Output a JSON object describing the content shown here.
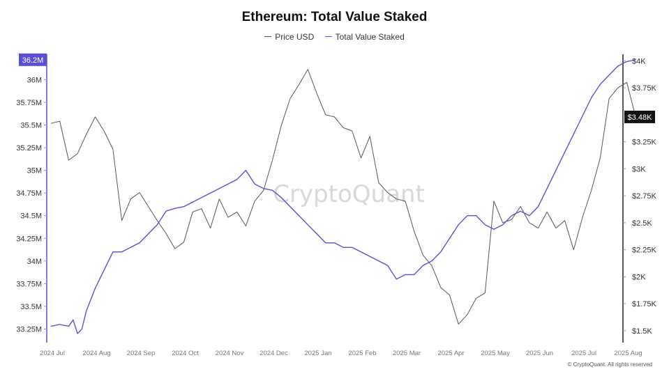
{
  "footer": {
    "copyright": "© CryptoQuant. All rights reserved"
  },
  "chart_data": {
    "type": "line",
    "title": "Ethereum: Total Value Staked",
    "watermark": "CryptoQuant",
    "legend_position": "top-center",
    "grid": false,
    "x_tick_labels": [
      "2024 Jul",
      "2024 Aug",
      "2024 Sep",
      "2024 Oct",
      "2024 Nov",
      "2024 Dec",
      "2025 Jan",
      "2025 Feb",
      "2025 Mar",
      "2025 Apr",
      "2025 May",
      "2025 Jun",
      "2025 Jul",
      "2025 Aug"
    ],
    "y_left": {
      "ticks": [
        33.25,
        33.5,
        33.75,
        34,
        34.25,
        34.5,
        34.75,
        35,
        35.25,
        35.5,
        35.75,
        36
      ],
      "tick_labels": [
        "33.25M",
        "33.5M",
        "33.75M",
        "34M",
        "34.25M",
        "34.5M",
        "34.75M",
        "35M",
        "35.25M",
        "35.5M",
        "35.75M",
        "36M"
      ],
      "range": [
        33.1,
        36.28
      ],
      "current_label": "36.2M",
      "color": "#5b4fd6"
    },
    "y_right": {
      "ticks": [
        1500,
        1750,
        2000,
        2250,
        2500,
        2750,
        3000,
        3250,
        3500,
        3750,
        4000
      ],
      "tick_labels": [
        "$1.5K",
        "$1.75K",
        "$2K",
        "$2.25K",
        "$2.5K",
        "$2.75K",
        "$3K",
        "$3.25K",
        "$3.5K",
        "$3.75K",
        "$4K"
      ],
      "range": [
        1390,
        4060
      ],
      "current_label": "$3.48K",
      "color": "#111111"
    },
    "series": [
      {
        "name": "Price USD",
        "axis": "right",
        "color": "#555555",
        "x": [
          0,
          0.2,
          0.4,
          0.6,
          0.8,
          1.0,
          1.2,
          1.4,
          1.6,
          1.8,
          2.0,
          2.2,
          2.4,
          2.6,
          2.8,
          3.0,
          3.2,
          3.4,
          3.6,
          3.8,
          4.0,
          4.2,
          4.4,
          4.6,
          4.8,
          5.0,
          5.2,
          5.4,
          5.6,
          5.8,
          6.0,
          6.2,
          6.4,
          6.6,
          6.8,
          7.0,
          7.2,
          7.4,
          7.6,
          7.8,
          8.0,
          8.2,
          8.4,
          8.6,
          8.8,
          9.0,
          9.2,
          9.4,
          9.6,
          9.8,
          10.0,
          10.2,
          10.4,
          10.6,
          10.8,
          11.0,
          11.2,
          11.4,
          11.6,
          11.8,
          12.0,
          12.2,
          12.4,
          12.6,
          12.8,
          13.0,
          13.2
        ],
        "values": [
          3420,
          3440,
          3080,
          3140,
          3320,
          3480,
          3350,
          3180,
          2520,
          2720,
          2780,
          2650,
          2520,
          2400,
          2260,
          2320,
          2600,
          2630,
          2450,
          2720,
          2550,
          2600,
          2470,
          2700,
          2800,
          3080,
          3400,
          3650,
          3780,
          3920,
          3700,
          3500,
          3480,
          3380,
          3350,
          3100,
          3300,
          2870,
          2780,
          2720,
          2700,
          2420,
          2200,
          2100,
          1900,
          1830,
          1560,
          1650,
          1800,
          1850,
          2700,
          2500,
          2530,
          2650,
          2500,
          2450,
          2600,
          2450,
          2520,
          2250,
          2550,
          2800,
          3100,
          3650,
          3750,
          3800,
          3480
        ]
      },
      {
        "name": "Total Value Staked",
        "axis": "left",
        "color": "#5b4fd6",
        "x": [
          0,
          0.2,
          0.4,
          0.5,
          0.6,
          0.7,
          0.8,
          1.0,
          1.2,
          1.4,
          1.6,
          1.8,
          2.0,
          2.2,
          2.4,
          2.6,
          2.8,
          3.0,
          3.2,
          3.4,
          3.6,
          3.8,
          4.0,
          4.2,
          4.4,
          4.6,
          4.8,
          5.0,
          5.2,
          5.4,
          5.6,
          5.8,
          6.0,
          6.2,
          6.4,
          6.6,
          6.8,
          7.0,
          7.2,
          7.4,
          7.6,
          7.8,
          8.0,
          8.2,
          8.4,
          8.6,
          8.8,
          9.0,
          9.2,
          9.4,
          9.6,
          9.8,
          10.0,
          10.2,
          10.4,
          10.6,
          10.8,
          11.0,
          11.2,
          11.4,
          11.6,
          11.8,
          12.0,
          12.2,
          12.4,
          12.6,
          12.8,
          13.0,
          13.2
        ],
        "values": [
          33.28,
          33.3,
          33.28,
          33.35,
          33.2,
          33.25,
          33.45,
          33.7,
          33.9,
          34.1,
          34.1,
          34.15,
          34.2,
          34.3,
          34.4,
          34.55,
          34.58,
          34.6,
          34.65,
          34.7,
          34.75,
          34.8,
          34.85,
          34.9,
          35.0,
          34.85,
          34.8,
          34.78,
          34.7,
          34.6,
          34.5,
          34.4,
          34.3,
          34.2,
          34.2,
          34.15,
          34.15,
          34.1,
          34.05,
          34.0,
          33.95,
          33.8,
          33.85,
          33.85,
          33.95,
          34.0,
          34.1,
          34.25,
          34.4,
          34.5,
          34.5,
          34.4,
          34.35,
          34.4,
          34.5,
          34.55,
          34.5,
          34.6,
          34.8,
          35.0,
          35.2,
          35.4,
          35.6,
          35.8,
          35.95,
          36.05,
          36.15,
          36.2,
          36.22
        ]
      }
    ]
  }
}
